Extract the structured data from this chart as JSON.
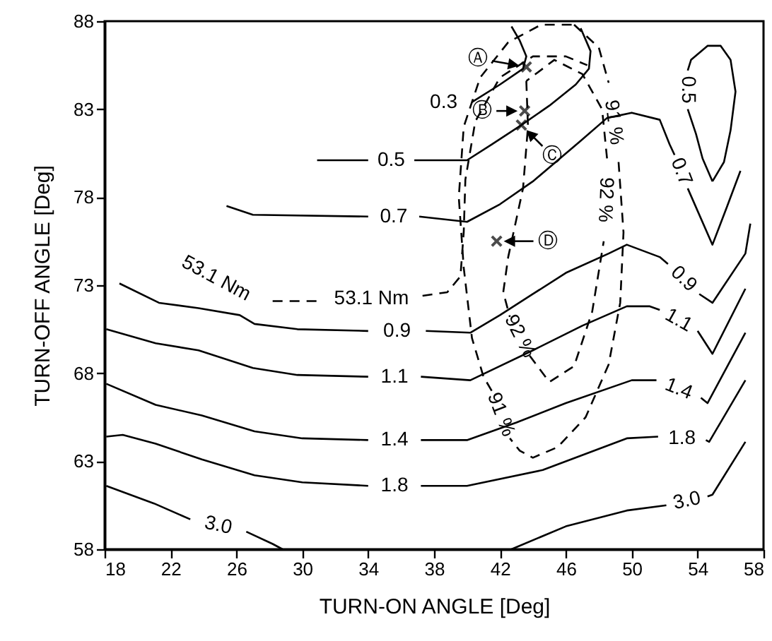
{
  "chart_data": {
    "type": "line",
    "xlabel": "TURN-ON ANGLE [Deg]",
    "ylabel": "TURN-OFF ANGLE [Deg]",
    "xlim": [
      18,
      58
    ],
    "xticks": [
      18,
      22,
      26,
      30,
      34,
      38,
      42,
      46,
      50,
      54,
      58
    ],
    "ylim": [
      58,
      88
    ],
    "yticks": [
      58,
      63,
      68,
      73,
      78,
      83,
      88
    ],
    "series": [
      {
        "color": "#000000",
        "line_style": "solid",
        "x": [
          40.3,
          42,
          43.4,
          43.6,
          43.2,
          42.7
        ],
        "values": [
          83.4,
          84.4,
          85.3,
          86.0,
          86.9,
          87.7
        ]
      },
      {
        "name": "0.5",
        "color": "#000000",
        "line_style": "solid",
        "x": [
          30.9,
          34,
          null,
          36.8,
          40,
          41.5,
          43.3,
          45,
          46.6,
          47.4,
          47.5,
          46.9
        ],
        "values": [
          80.1,
          80.1,
          null,
          80.1,
          80.1,
          81.0,
          82.1,
          83.2,
          84.4,
          85.3,
          86.3,
          87.6
        ]
      },
      {
        "name": "0.7",
        "color": "#000000",
        "line_style": "solid",
        "x": [
          25.4,
          27,
          34,
          null,
          37.1,
          40,
          42,
          44,
          46.9,
          48.5,
          50,
          51.7,
          52.3,
          52.6,
          null,
          53.4,
          54.9,
          55.8,
          56.6
        ],
        "values": [
          77.5,
          77.0,
          76.9,
          null,
          76.9,
          76.6,
          77.6,
          78.9,
          81.2,
          82.5,
          82.8,
          82.4,
          81.0,
          80.4,
          null,
          78.5,
          75.3,
          77.5,
          79.5
        ]
      },
      {
        "name": "0.9",
        "color": "#000000",
        "line_style": "solid",
        "x": [
          18.9,
          21.3,
          23.7,
          26.2,
          27.1,
          29.7,
          34,
          null,
          37.5,
          40.2,
          42,
          44,
          46,
          48.6,
          49.7,
          51.7,
          52.2,
          null,
          54.1,
          54.9,
          56.9,
          57.2
        ],
        "values": [
          73.1,
          72.0,
          71.7,
          71.3,
          70.8,
          70.5,
          70.4,
          null,
          70.4,
          70.3,
          71.3,
          72.5,
          73.7,
          74.8,
          75.3,
          74.6,
          74.2,
          null,
          72.5,
          72.0,
          74.8,
          76.5
        ]
      },
      {
        "name": "1.1",
        "color": "#000000",
        "line_style": "solid",
        "x": [
          18.1,
          21.1,
          23.7,
          27,
          29.7,
          34,
          null,
          37.2,
          40.2,
          44,
          47,
          49.7,
          51.1,
          51.7,
          null,
          54.0,
          54.9,
          56.9
        ],
        "values": [
          70.5,
          69.7,
          69.3,
          68.3,
          67.9,
          67.8,
          null,
          67.8,
          67.6,
          69.3,
          70.7,
          71.8,
          71.8,
          71.6,
          null,
          70.4,
          69.1,
          72.8
        ]
      },
      {
        "name": "1.4",
        "color": "#000000",
        "line_style": "solid",
        "x": [
          18.1,
          21.1,
          23.9,
          27.1,
          30,
          34,
          null,
          37.2,
          40,
          43,
          46,
          50,
          51.5,
          null,
          54.2,
          54.6,
          56.9
        ],
        "values": [
          67.4,
          66.2,
          65.6,
          64.7,
          64.3,
          64.2,
          null,
          64.2,
          64.2,
          65.2,
          66.3,
          67.6,
          67.6,
          null,
          66.6,
          66.3,
          70.3
        ]
      },
      {
        "name": "1.8",
        "color": "#000000",
        "line_style": "solid",
        "x": [
          18.1,
          19.1,
          21.1,
          23.9,
          27.1,
          30,
          34,
          null,
          37.2,
          40,
          44.6,
          49.7,
          51.6,
          null,
          54.5,
          54.7,
          56.9
        ],
        "values": [
          64.4,
          64.5,
          64.0,
          63.1,
          62.2,
          61.8,
          61.6,
          null,
          61.6,
          61.6,
          62.5,
          64.3,
          64.4,
          null,
          64.2,
          64.1,
          67.6
        ]
      },
      {
        "name": "3.0",
        "color": "#000000",
        "line_style": "solid",
        "x": [
          18.1,
          21,
          23.2,
          null,
          26.6,
          28.2,
          28.8
        ],
        "values": [
          61.6,
          60.6,
          59.7,
          null,
          59.0,
          58.3,
          58.0
        ]
      },
      {
        "name": "3.0",
        "color": "#000000",
        "line_style": "solid",
        "x": [
          42.7,
          46,
          49.7,
          52.1,
          null,
          54.6,
          54.9,
          56.9
        ],
        "values": [
          58.0,
          59.3,
          60.2,
          60.5,
          null,
          61.0,
          61.1,
          64.1
        ]
      },
      {
        "name": "0.5",
        "color": "#000000",
        "line_style": "solid",
        "x": [
          54.9,
          55.6,
          56.0,
          56.3,
          56.0,
          55.4,
          54.6,
          53.6,
          53.4,
          null,
          53.4,
          53.9,
          54.3,
          54.9
        ],
        "values": [
          78.9,
          80.0,
          81.8,
          84.0,
          85.8,
          86.6,
          86.6,
          85.8,
          85.2,
          null,
          83.0,
          81.6,
          80.2,
          78.9
        ]
      },
      {
        "name": "53.1 Nm",
        "color": "#000000",
        "line_style": "dashed",
        "x": [
          28.2,
          31.1,
          null,
          37.3,
          38.8,
          39.6,
          39.8,
          39.9,
          40.5,
          42,
          44,
          46,
          47.3
        ],
        "values": [
          72.1,
          72.1,
          null,
          72.4,
          72.6,
          73.5,
          76.0,
          79.0,
          82.3,
          84.8,
          86.0,
          86.0,
          85.5
        ]
      },
      {
        "name": "91 %",
        "color": "#000000",
        "line_style": "dashed",
        "x": [
          46.5,
          48,
          48.6,
          null,
          49.2,
          49.5,
          49.3,
          48.6,
          47.2,
          45.5,
          44,
          43.2,
          42.6,
          null,
          41.5,
          41.0,
          40.3,
          39.8,
          39.5,
          39.8,
          40.8,
          42.5,
          44.5,
          46.5
        ],
        "values": [
          87.8,
          86.5,
          84.5,
          null,
          80.0,
          76.0,
          72.0,
          68.5,
          65.5,
          63.8,
          63.2,
          63.6,
          64.3,
          null,
          67.0,
          67.8,
          70.0,
          74.0,
          78.0,
          82.0,
          84.8,
          86.8,
          87.8,
          87.8
        ]
      },
      {
        "name": "92 %",
        "color": "#000000",
        "line_style": "dashed",
        "x": [
          43.6,
          43.7,
          43.4,
          42.5,
          42.2,
          42.6,
          null,
          43.8,
          45,
          46.5,
          47.6,
          48.3,
          null,
          48.5,
          48.2,
          47,
          45.3,
          43.6
        ],
        "values": [
          84.6,
          82.0,
          78.5,
          74.6,
          72.6,
          71.2,
          null,
          69.0,
          67.5,
          68.4,
          71.5,
          75.5,
          null,
          80.2,
          83.0,
          85.0,
          85.8,
          84.6
        ]
      },
      {
        "type": "scatter",
        "color": "#000000",
        "marker": "cross",
        "x": [
          43.6,
          43.5,
          43.3,
          41.8
        ],
        "values": [
          85.4,
          82.9,
          82.1,
          75.5
        ]
      }
    ],
    "annotations": [
      {
        "text": "0.3",
        "x": 40.3,
        "y": 83.4
      },
      {
        "text": "53.1 Nm",
        "x": 28.2,
        "y": 72.1
      },
      {
        "text": "Ⓐ",
        "x": 43.6,
        "y": 85.4
      },
      {
        "text": "Ⓑ",
        "x": 43.5,
        "y": 82.9
      },
      {
        "text": "Ⓒ",
        "x": 43.3,
        "y": 82.1
      },
      {
        "text": "Ⓓ",
        "x": 41.8,
        "y": 75.5
      }
    ]
  }
}
